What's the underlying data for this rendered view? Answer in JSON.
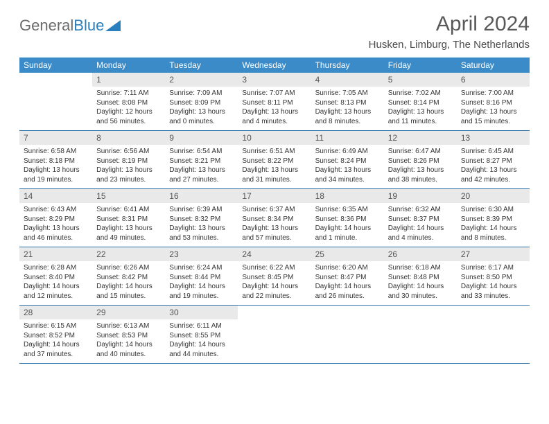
{
  "logo": {
    "text1": "General",
    "text2": "Blue",
    "triangle_color": "#2a7fbf"
  },
  "title": "April 2024",
  "location": "Husken, Limburg, The Netherlands",
  "day_names": [
    "Sunday",
    "Monday",
    "Tuesday",
    "Wednesday",
    "Thursday",
    "Friday",
    "Saturday"
  ],
  "colors": {
    "header_bg": "#3b8bc9",
    "header_text": "#ffffff",
    "daynum_bg": "#e9e9e9",
    "border": "#2a6fa5",
    "text": "#333333"
  },
  "weeks": [
    [
      {
        "day": "",
        "empty": true
      },
      {
        "day": "1",
        "sunrise": "Sunrise: 7:11 AM",
        "sunset": "Sunset: 8:08 PM",
        "daylight1": "Daylight: 12 hours",
        "daylight2": "and 56 minutes."
      },
      {
        "day": "2",
        "sunrise": "Sunrise: 7:09 AM",
        "sunset": "Sunset: 8:09 PM",
        "daylight1": "Daylight: 13 hours",
        "daylight2": "and 0 minutes."
      },
      {
        "day": "3",
        "sunrise": "Sunrise: 7:07 AM",
        "sunset": "Sunset: 8:11 PM",
        "daylight1": "Daylight: 13 hours",
        "daylight2": "and 4 minutes."
      },
      {
        "day": "4",
        "sunrise": "Sunrise: 7:05 AM",
        "sunset": "Sunset: 8:13 PM",
        "daylight1": "Daylight: 13 hours",
        "daylight2": "and 8 minutes."
      },
      {
        "day": "5",
        "sunrise": "Sunrise: 7:02 AM",
        "sunset": "Sunset: 8:14 PM",
        "daylight1": "Daylight: 13 hours",
        "daylight2": "and 11 minutes."
      },
      {
        "day": "6",
        "sunrise": "Sunrise: 7:00 AM",
        "sunset": "Sunset: 8:16 PM",
        "daylight1": "Daylight: 13 hours",
        "daylight2": "and 15 minutes."
      }
    ],
    [
      {
        "day": "7",
        "sunrise": "Sunrise: 6:58 AM",
        "sunset": "Sunset: 8:18 PM",
        "daylight1": "Daylight: 13 hours",
        "daylight2": "and 19 minutes."
      },
      {
        "day": "8",
        "sunrise": "Sunrise: 6:56 AM",
        "sunset": "Sunset: 8:19 PM",
        "daylight1": "Daylight: 13 hours",
        "daylight2": "and 23 minutes."
      },
      {
        "day": "9",
        "sunrise": "Sunrise: 6:54 AM",
        "sunset": "Sunset: 8:21 PM",
        "daylight1": "Daylight: 13 hours",
        "daylight2": "and 27 minutes."
      },
      {
        "day": "10",
        "sunrise": "Sunrise: 6:51 AM",
        "sunset": "Sunset: 8:22 PM",
        "daylight1": "Daylight: 13 hours",
        "daylight2": "and 31 minutes."
      },
      {
        "day": "11",
        "sunrise": "Sunrise: 6:49 AM",
        "sunset": "Sunset: 8:24 PM",
        "daylight1": "Daylight: 13 hours",
        "daylight2": "and 34 minutes."
      },
      {
        "day": "12",
        "sunrise": "Sunrise: 6:47 AM",
        "sunset": "Sunset: 8:26 PM",
        "daylight1": "Daylight: 13 hours",
        "daylight2": "and 38 minutes."
      },
      {
        "day": "13",
        "sunrise": "Sunrise: 6:45 AM",
        "sunset": "Sunset: 8:27 PM",
        "daylight1": "Daylight: 13 hours",
        "daylight2": "and 42 minutes."
      }
    ],
    [
      {
        "day": "14",
        "sunrise": "Sunrise: 6:43 AM",
        "sunset": "Sunset: 8:29 PM",
        "daylight1": "Daylight: 13 hours",
        "daylight2": "and 46 minutes."
      },
      {
        "day": "15",
        "sunrise": "Sunrise: 6:41 AM",
        "sunset": "Sunset: 8:31 PM",
        "daylight1": "Daylight: 13 hours",
        "daylight2": "and 49 minutes."
      },
      {
        "day": "16",
        "sunrise": "Sunrise: 6:39 AM",
        "sunset": "Sunset: 8:32 PM",
        "daylight1": "Daylight: 13 hours",
        "daylight2": "and 53 minutes."
      },
      {
        "day": "17",
        "sunrise": "Sunrise: 6:37 AM",
        "sunset": "Sunset: 8:34 PM",
        "daylight1": "Daylight: 13 hours",
        "daylight2": "and 57 minutes."
      },
      {
        "day": "18",
        "sunrise": "Sunrise: 6:35 AM",
        "sunset": "Sunset: 8:36 PM",
        "daylight1": "Daylight: 14 hours",
        "daylight2": "and 1 minute."
      },
      {
        "day": "19",
        "sunrise": "Sunrise: 6:32 AM",
        "sunset": "Sunset: 8:37 PM",
        "daylight1": "Daylight: 14 hours",
        "daylight2": "and 4 minutes."
      },
      {
        "day": "20",
        "sunrise": "Sunrise: 6:30 AM",
        "sunset": "Sunset: 8:39 PM",
        "daylight1": "Daylight: 14 hours",
        "daylight2": "and 8 minutes."
      }
    ],
    [
      {
        "day": "21",
        "sunrise": "Sunrise: 6:28 AM",
        "sunset": "Sunset: 8:40 PM",
        "daylight1": "Daylight: 14 hours",
        "daylight2": "and 12 minutes."
      },
      {
        "day": "22",
        "sunrise": "Sunrise: 6:26 AM",
        "sunset": "Sunset: 8:42 PM",
        "daylight1": "Daylight: 14 hours",
        "daylight2": "and 15 minutes."
      },
      {
        "day": "23",
        "sunrise": "Sunrise: 6:24 AM",
        "sunset": "Sunset: 8:44 PM",
        "daylight1": "Daylight: 14 hours",
        "daylight2": "and 19 minutes."
      },
      {
        "day": "24",
        "sunrise": "Sunrise: 6:22 AM",
        "sunset": "Sunset: 8:45 PM",
        "daylight1": "Daylight: 14 hours",
        "daylight2": "and 22 minutes."
      },
      {
        "day": "25",
        "sunrise": "Sunrise: 6:20 AM",
        "sunset": "Sunset: 8:47 PM",
        "daylight1": "Daylight: 14 hours",
        "daylight2": "and 26 minutes."
      },
      {
        "day": "26",
        "sunrise": "Sunrise: 6:18 AM",
        "sunset": "Sunset: 8:48 PM",
        "daylight1": "Daylight: 14 hours",
        "daylight2": "and 30 minutes."
      },
      {
        "day": "27",
        "sunrise": "Sunrise: 6:17 AM",
        "sunset": "Sunset: 8:50 PM",
        "daylight1": "Daylight: 14 hours",
        "daylight2": "and 33 minutes."
      }
    ],
    [
      {
        "day": "28",
        "sunrise": "Sunrise: 6:15 AM",
        "sunset": "Sunset: 8:52 PM",
        "daylight1": "Daylight: 14 hours",
        "daylight2": "and 37 minutes."
      },
      {
        "day": "29",
        "sunrise": "Sunrise: 6:13 AM",
        "sunset": "Sunset: 8:53 PM",
        "daylight1": "Daylight: 14 hours",
        "daylight2": "and 40 minutes."
      },
      {
        "day": "30",
        "sunrise": "Sunrise: 6:11 AM",
        "sunset": "Sunset: 8:55 PM",
        "daylight1": "Daylight: 14 hours",
        "daylight2": "and 44 minutes."
      },
      {
        "day": "",
        "empty": true
      },
      {
        "day": "",
        "empty": true
      },
      {
        "day": "",
        "empty": true
      },
      {
        "day": "",
        "empty": true
      }
    ]
  ]
}
